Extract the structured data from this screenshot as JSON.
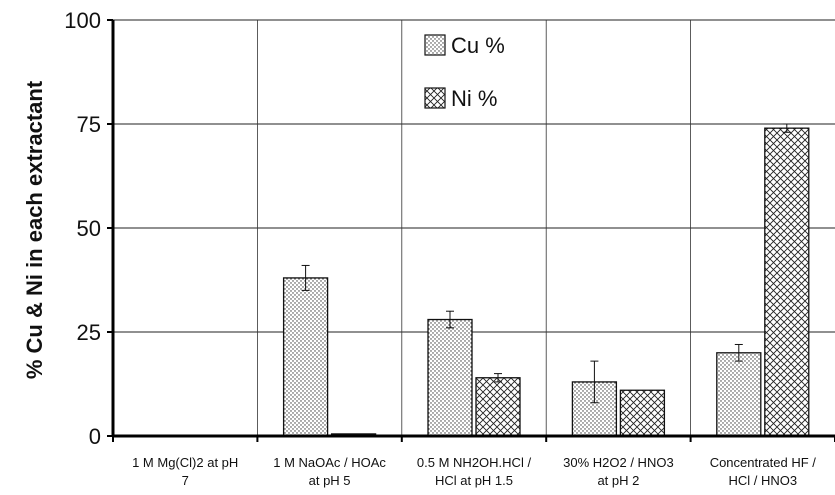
{
  "chart_data": {
    "type": "bar",
    "title": "",
    "xlabel": "",
    "ylabel": "% Cu & Ni in each extractant",
    "ylim": [
      0,
      100
    ],
    "yticks": [
      0,
      25,
      50,
      75,
      100
    ],
    "grid": true,
    "legend_position": "top-center",
    "categories": [
      [
        "1 M Mg(Cl)2 at pH",
        "7"
      ],
      [
        "1 M NaOAc / HOAc",
        "at pH 5"
      ],
      [
        "0.5 M NH2OH.HCl /",
        "HCl at pH 1.5"
      ],
      [
        "30% H2O2 / HNO3",
        "at pH 2"
      ],
      [
        "Concentrated HF /",
        "HCl / HNO3"
      ]
    ],
    "series": [
      {
        "name": "Cu %",
        "pattern": "dots",
        "values": [
          0,
          38,
          28,
          13,
          20
        ],
        "errors": [
          0,
          3,
          2,
          5,
          2
        ]
      },
      {
        "name": "Ni %",
        "pattern": "cross",
        "values": [
          0,
          0.5,
          14,
          11,
          74
        ],
        "errors": [
          0,
          0,
          1,
          0,
          1
        ]
      }
    ]
  }
}
